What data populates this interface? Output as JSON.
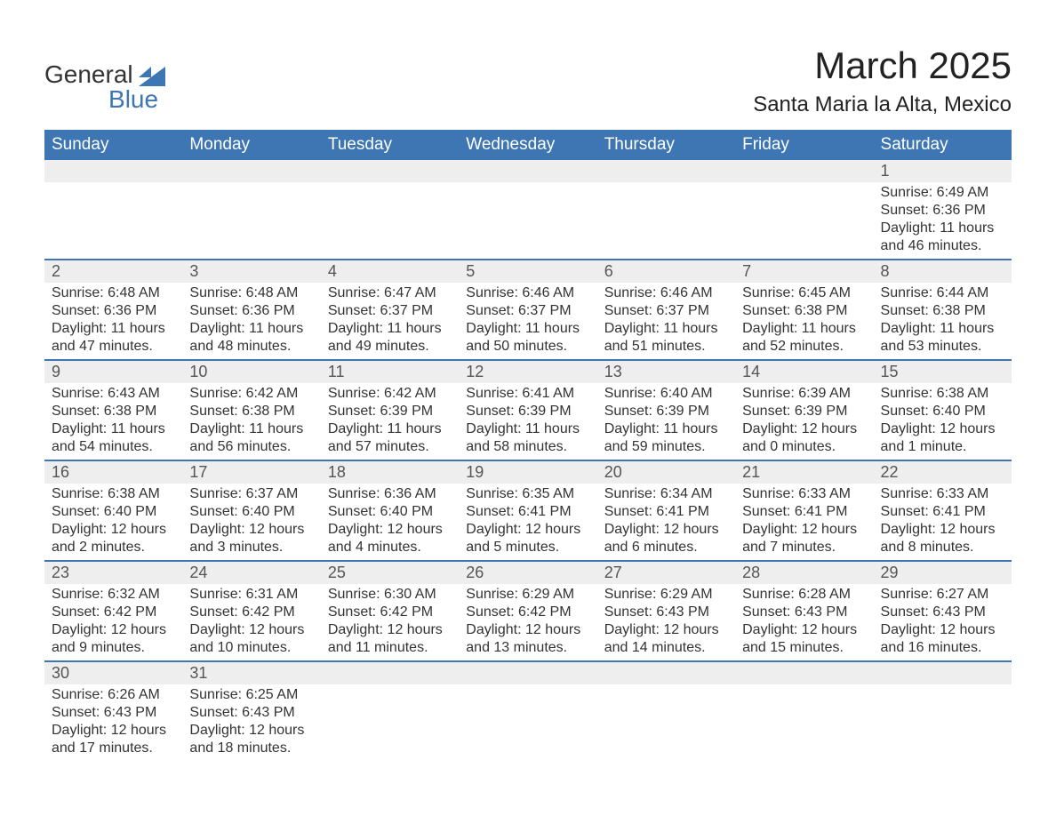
{
  "logo": {
    "general": "General",
    "blue": "Blue"
  },
  "title": {
    "month": "March 2025",
    "location": "Santa Maria la Alta, Mexico"
  },
  "colors": {
    "header_bg": "#3d76b3",
    "header_text": "#ffffff",
    "daynum_bg": "#eeeeee",
    "daynum_text": "#555555",
    "body_text": "#333333",
    "row_divider": "#3d76b3",
    "logo_blue": "#3d76b3",
    "background": "#ffffff"
  },
  "typography": {
    "title_month_fontsize": 42,
    "title_location_fontsize": 24,
    "weekday_fontsize": 19,
    "daynum_fontsize": 18,
    "cell_fontsize": 16,
    "font_family": "Arial"
  },
  "weekdays": [
    "Sunday",
    "Monday",
    "Tuesday",
    "Wednesday",
    "Thursday",
    "Friday",
    "Saturday"
  ],
  "weeks": [
    [
      null,
      null,
      null,
      null,
      null,
      null,
      {
        "n": "1",
        "sr": "Sunrise: 6:49 AM",
        "ss": "Sunset: 6:36 PM",
        "dl": "Daylight: 11 hours and 46 minutes."
      }
    ],
    [
      {
        "n": "2",
        "sr": "Sunrise: 6:48 AM",
        "ss": "Sunset: 6:36 PM",
        "dl": "Daylight: 11 hours and 47 minutes."
      },
      {
        "n": "3",
        "sr": "Sunrise: 6:48 AM",
        "ss": "Sunset: 6:36 PM",
        "dl": "Daylight: 11 hours and 48 minutes."
      },
      {
        "n": "4",
        "sr": "Sunrise: 6:47 AM",
        "ss": "Sunset: 6:37 PM",
        "dl": "Daylight: 11 hours and 49 minutes."
      },
      {
        "n": "5",
        "sr": "Sunrise: 6:46 AM",
        "ss": "Sunset: 6:37 PM",
        "dl": "Daylight: 11 hours and 50 minutes."
      },
      {
        "n": "6",
        "sr": "Sunrise: 6:46 AM",
        "ss": "Sunset: 6:37 PM",
        "dl": "Daylight: 11 hours and 51 minutes."
      },
      {
        "n": "7",
        "sr": "Sunrise: 6:45 AM",
        "ss": "Sunset: 6:38 PM",
        "dl": "Daylight: 11 hours and 52 minutes."
      },
      {
        "n": "8",
        "sr": "Sunrise: 6:44 AM",
        "ss": "Sunset: 6:38 PM",
        "dl": "Daylight: 11 hours and 53 minutes."
      }
    ],
    [
      {
        "n": "9",
        "sr": "Sunrise: 6:43 AM",
        "ss": "Sunset: 6:38 PM",
        "dl": "Daylight: 11 hours and 54 minutes."
      },
      {
        "n": "10",
        "sr": "Sunrise: 6:42 AM",
        "ss": "Sunset: 6:38 PM",
        "dl": "Daylight: 11 hours and 56 minutes."
      },
      {
        "n": "11",
        "sr": "Sunrise: 6:42 AM",
        "ss": "Sunset: 6:39 PM",
        "dl": "Daylight: 11 hours and 57 minutes."
      },
      {
        "n": "12",
        "sr": "Sunrise: 6:41 AM",
        "ss": "Sunset: 6:39 PM",
        "dl": "Daylight: 11 hours and 58 minutes."
      },
      {
        "n": "13",
        "sr": "Sunrise: 6:40 AM",
        "ss": "Sunset: 6:39 PM",
        "dl": "Daylight: 11 hours and 59 minutes."
      },
      {
        "n": "14",
        "sr": "Sunrise: 6:39 AM",
        "ss": "Sunset: 6:39 PM",
        "dl": "Daylight: 12 hours and 0 minutes."
      },
      {
        "n": "15",
        "sr": "Sunrise: 6:38 AM",
        "ss": "Sunset: 6:40 PM",
        "dl": "Daylight: 12 hours and 1 minute."
      }
    ],
    [
      {
        "n": "16",
        "sr": "Sunrise: 6:38 AM",
        "ss": "Sunset: 6:40 PM",
        "dl": "Daylight: 12 hours and 2 minutes."
      },
      {
        "n": "17",
        "sr": "Sunrise: 6:37 AM",
        "ss": "Sunset: 6:40 PM",
        "dl": "Daylight: 12 hours and 3 minutes."
      },
      {
        "n": "18",
        "sr": "Sunrise: 6:36 AM",
        "ss": "Sunset: 6:40 PM",
        "dl": "Daylight: 12 hours and 4 minutes."
      },
      {
        "n": "19",
        "sr": "Sunrise: 6:35 AM",
        "ss": "Sunset: 6:41 PM",
        "dl": "Daylight: 12 hours and 5 minutes."
      },
      {
        "n": "20",
        "sr": "Sunrise: 6:34 AM",
        "ss": "Sunset: 6:41 PM",
        "dl": "Daylight: 12 hours and 6 minutes."
      },
      {
        "n": "21",
        "sr": "Sunrise: 6:33 AM",
        "ss": "Sunset: 6:41 PM",
        "dl": "Daylight: 12 hours and 7 minutes."
      },
      {
        "n": "22",
        "sr": "Sunrise: 6:33 AM",
        "ss": "Sunset: 6:41 PM",
        "dl": "Daylight: 12 hours and 8 minutes."
      }
    ],
    [
      {
        "n": "23",
        "sr": "Sunrise: 6:32 AM",
        "ss": "Sunset: 6:42 PM",
        "dl": "Daylight: 12 hours and 9 minutes."
      },
      {
        "n": "24",
        "sr": "Sunrise: 6:31 AM",
        "ss": "Sunset: 6:42 PM",
        "dl": "Daylight: 12 hours and 10 minutes."
      },
      {
        "n": "25",
        "sr": "Sunrise: 6:30 AM",
        "ss": "Sunset: 6:42 PM",
        "dl": "Daylight: 12 hours and 11 minutes."
      },
      {
        "n": "26",
        "sr": "Sunrise: 6:29 AM",
        "ss": "Sunset: 6:42 PM",
        "dl": "Daylight: 12 hours and 13 minutes."
      },
      {
        "n": "27",
        "sr": "Sunrise: 6:29 AM",
        "ss": "Sunset: 6:43 PM",
        "dl": "Daylight: 12 hours and 14 minutes."
      },
      {
        "n": "28",
        "sr": "Sunrise: 6:28 AM",
        "ss": "Sunset: 6:43 PM",
        "dl": "Daylight: 12 hours and 15 minutes."
      },
      {
        "n": "29",
        "sr": "Sunrise: 6:27 AM",
        "ss": "Sunset: 6:43 PM",
        "dl": "Daylight: 12 hours and 16 minutes."
      }
    ],
    [
      {
        "n": "30",
        "sr": "Sunrise: 6:26 AM",
        "ss": "Sunset: 6:43 PM",
        "dl": "Daylight: 12 hours and 17 minutes."
      },
      {
        "n": "31",
        "sr": "Sunrise: 6:25 AM",
        "ss": "Sunset: 6:43 PM",
        "dl": "Daylight: 12 hours and 18 minutes."
      },
      null,
      null,
      null,
      null,
      null
    ]
  ]
}
